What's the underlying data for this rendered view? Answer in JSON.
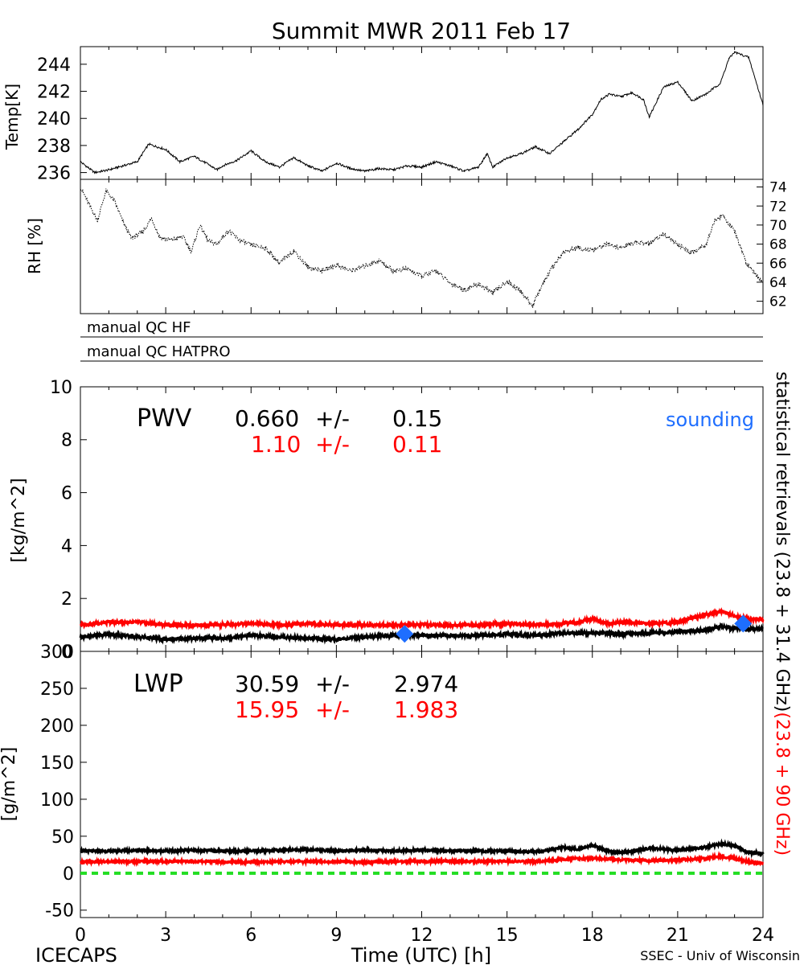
{
  "figure": {
    "title": "Summit MWR 2011 Feb 17",
    "footer_left": "ICECAPS",
    "footer_right": "SSEC - Univ of Wisconsin",
    "xlabel": "Time (UTC) [h]",
    "x_ticks": [
      "0",
      "3",
      "6",
      "9",
      "12",
      "15",
      "18",
      "21",
      "24"
    ],
    "right_label_black": "statistical retrievals (23.8 + 31.4 GHz)",
    "right_label_red": "(23.8 + 90 GHz)",
    "colors": {
      "black_series": "#000000",
      "red_series": "#ff0000",
      "sounding": "#1e6eff",
      "zero_line": "#22dd22"
    }
  },
  "qc": {
    "hf_label": "manual QC HF",
    "hatpro_label": "manual QC HATPRO"
  },
  "pwv_text": {
    "name": "PWV",
    "black_value": "0.660",
    "black_pm": "+/-",
    "black_err": "0.15",
    "red_value": "1.10",
    "red_pm": "+/-",
    "red_err": "0.11",
    "sounding_label": "sounding"
  },
  "lwp_text": {
    "name": "LWP",
    "black_value": "30.59",
    "black_pm": "+/-",
    "black_err": "2.974",
    "red_value": "15.95",
    "red_pm": "+/-",
    "red_err": "1.983"
  },
  "chart_data": [
    {
      "id": "temp",
      "type": "line",
      "ylabel": "Temp[K]",
      "xlim": [
        0,
        24
      ],
      "ylim": [
        235.5,
        245.3
      ],
      "yticks": [
        236,
        238,
        240,
        242,
        244
      ],
      "grid": false,
      "series": [
        {
          "color": "#000000",
          "x": [
            0,
            0.5,
            1,
            1.5,
            2,
            2.4,
            3,
            3.5,
            4,
            4.5,
            4.8,
            5,
            5.5,
            6,
            6.5,
            7,
            7.5,
            8,
            8.5,
            9,
            9.5,
            10,
            10.5,
            11,
            11.5,
            12,
            12.5,
            13,
            13.5,
            14,
            14.3,
            14.5,
            15,
            15.5,
            16,
            16.5,
            17,
            17.5,
            18,
            18.3,
            18.6,
            19,
            19.4,
            19.8,
            20,
            20.5,
            21,
            21.5,
            22,
            22.5,
            22.8,
            23,
            23.5,
            24
          ],
          "y": [
            236.8,
            236.0,
            236.2,
            236.5,
            236.8,
            238.1,
            237.7,
            236.8,
            237.2,
            236.6,
            236.2,
            236.5,
            236.9,
            237.6,
            236.8,
            236.4,
            237.1,
            236.5,
            236.1,
            236.7,
            236.3,
            236.1,
            236.3,
            236.2,
            236.5,
            236.4,
            236.8,
            236.5,
            236.1,
            236.4,
            237.4,
            236.4,
            237.1,
            237.4,
            237.9,
            237.4,
            238.3,
            239.2,
            240.3,
            241.4,
            241.8,
            241.6,
            241.9,
            241.4,
            240.1,
            242.3,
            242.7,
            241.3,
            241.8,
            242.6,
            244.4,
            244.9,
            244.5,
            241.0
          ]
        }
      ]
    },
    {
      "id": "rh",
      "type": "line",
      "ylabel": "RH [%]",
      "xlim": [
        0,
        24
      ],
      "ylim": [
        60.7,
        74.8
      ],
      "yticks": [
        62,
        64,
        66,
        68,
        70,
        72,
        74
      ],
      "yaxis_side": "right",
      "grid": false,
      "series": [
        {
          "color": "#000000",
          "dotted": true,
          "x": [
            0,
            0.3,
            0.6,
            0.9,
            1.2,
            1.5,
            1.8,
            2.2,
            2.5,
            2.8,
            3.2,
            3.6,
            3.9,
            4.2,
            4.5,
            4.8,
            5.2,
            5.6,
            6,
            6.5,
            7,
            7.5,
            8,
            8.5,
            9,
            9.5,
            10,
            10.5,
            11,
            11.5,
            12,
            12.5,
            13,
            13.5,
            14,
            14.5,
            15,
            15.5,
            15.9,
            16.2,
            16.6,
            17,
            17.5,
            18,
            18.5,
            19,
            19.5,
            20,
            20.5,
            21,
            21.5,
            22,
            22.3,
            22.6,
            23,
            23.4,
            24
          ],
          "y": [
            74.0,
            72.2,
            70.5,
            73.6,
            72.5,
            70.3,
            68.6,
            69.3,
            70.7,
            68.7,
            68.4,
            68.8,
            67.2,
            70.0,
            68.3,
            68.0,
            69.4,
            68.4,
            67.9,
            67.6,
            66.0,
            67.3,
            65.6,
            65.2,
            65.8,
            65.2,
            65.7,
            66.3,
            65.2,
            65.4,
            64.6,
            65.2,
            63.9,
            63.2,
            63.8,
            62.9,
            64.1,
            63.0,
            61.5,
            63.5,
            65.6,
            67.2,
            67.6,
            67.3,
            68.0,
            67.6,
            68.2,
            68.0,
            69.1,
            67.9,
            67.1,
            68.0,
            70.5,
            71.0,
            69.3,
            66.1,
            64.0
          ]
        }
      ]
    },
    {
      "id": "pwv",
      "type": "line",
      "ylabel": "[kg/m^2]",
      "xlim": [
        0,
        24
      ],
      "ylim": [
        0,
        10
      ],
      "yticks": [
        0,
        2,
        4,
        6,
        8,
        10
      ],
      "grid": false,
      "series": [
        {
          "color": "#ff0000",
          "x": [
            0,
            1,
            2,
            3,
            4,
            5,
            6,
            7,
            8,
            9,
            10,
            11,
            12,
            13,
            14,
            15,
            16,
            17,
            17.5,
            18,
            18.5,
            19,
            20,
            21,
            21.5,
            22,
            22.5,
            23,
            23.5,
            24
          ],
          "y": [
            1.0,
            1.1,
            1.1,
            1.0,
            1.0,
            1.0,
            1.05,
            1.0,
            1.05,
            1.0,
            1.0,
            1.0,
            1.0,
            1.0,
            1.0,
            1.05,
            1.0,
            1.05,
            1.1,
            1.25,
            1.05,
            1.1,
            1.05,
            1.1,
            1.25,
            1.4,
            1.5,
            1.35,
            1.2,
            1.2
          ]
        },
        {
          "color": "#000000",
          "x": [
            0,
            1,
            2,
            3,
            4,
            5,
            6,
            7,
            8,
            9,
            10,
            11,
            12,
            13,
            14,
            15,
            16,
            17,
            18,
            19,
            20,
            21,
            22,
            22.5,
            23,
            23.5,
            24
          ],
          "y": [
            0.55,
            0.65,
            0.55,
            0.45,
            0.5,
            0.5,
            0.6,
            0.55,
            0.5,
            0.45,
            0.55,
            0.6,
            0.6,
            0.6,
            0.6,
            0.65,
            0.6,
            0.7,
            0.7,
            0.65,
            0.7,
            0.75,
            0.8,
            0.95,
            0.85,
            0.85,
            0.85
          ]
        }
      ],
      "sounding_points": [
        {
          "x": 11.4,
          "y": 0.66
        },
        {
          "x": 23.3,
          "y": 1.05
        }
      ]
    },
    {
      "id": "lwp",
      "type": "line",
      "ylabel": "[g/m^2]",
      "xlim": [
        0,
        24
      ],
      "ylim": [
        -60,
        300
      ],
      "yticks": [
        -50,
        0,
        50,
        100,
        150,
        200,
        250,
        300
      ],
      "grid": false,
      "series": [
        {
          "color": "#000000",
          "x": [
            0,
            1,
            2,
            3,
            4,
            5,
            6,
            7,
            8,
            9,
            10,
            11,
            12,
            13,
            14,
            15,
            16,
            16.5,
            17,
            17.5,
            18,
            18.5,
            19,
            19.5,
            20,
            21,
            22,
            22.5,
            23,
            23.5,
            24
          ],
          "y": [
            30,
            30,
            31,
            30,
            31,
            30,
            30,
            31,
            32,
            30,
            31,
            30,
            31,
            30,
            30,
            30,
            29,
            31,
            35,
            32,
            38,
            30,
            28,
            30,
            34,
            31,
            35,
            40,
            37,
            28,
            26
          ]
        },
        {
          "color": "#ff0000",
          "x": [
            0,
            2,
            4,
            6,
            8,
            10,
            12,
            14,
            16,
            17,
            18,
            19,
            20,
            21,
            22,
            22.5,
            23,
            23.5,
            24
          ],
          "y": [
            15,
            16,
            16,
            15,
            16,
            15,
            16,
            16,
            16,
            19,
            20,
            18,
            17,
            18,
            20,
            23,
            20,
            15,
            13
          ]
        }
      ],
      "reference_line": {
        "y": 0,
        "color": "#22dd22",
        "dashed": true
      }
    }
  ]
}
